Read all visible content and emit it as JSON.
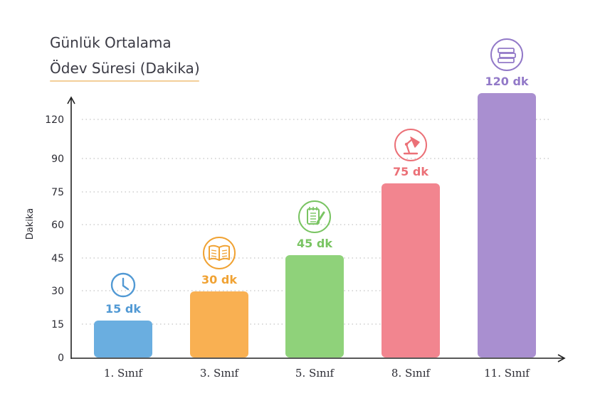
{
  "chart_data": {
    "type": "bar",
    "title_lines": [
      "Günlük Ortalama",
      "Ödev Süresi (Dakika)"
    ],
    "xlabel": "",
    "ylabel": "Dakika",
    "categories": [
      "1. Sınıf",
      "3. Sınıf",
      "5. Sınıf",
      "8. Sınıf",
      "11. Sınıf"
    ],
    "values": [
      15,
      30,
      45,
      75,
      120
    ],
    "value_labels": [
      "15 dk",
      "30 dk",
      "45 dk",
      "75 dk",
      "120 dk"
    ],
    "y_ticks": [
      0,
      15,
      30,
      45,
      60,
      75,
      90,
      120
    ],
    "ylim": [
      0,
      120
    ],
    "grid": "dotted horizontal",
    "colors": [
      "#6aaee0",
      "#f9b052",
      "#8fd27a",
      "#f2858f",
      "#a98fd0"
    ],
    "label_colors": [
      "#5199d4",
      "#f0a233",
      "#79c462",
      "#eb7077",
      "#9279c8"
    ],
    "icons": [
      "clock-icon",
      "open-book-icon",
      "notepad-pencil-icon",
      "desk-lamp-icon",
      "book-stack-icon"
    ]
  }
}
